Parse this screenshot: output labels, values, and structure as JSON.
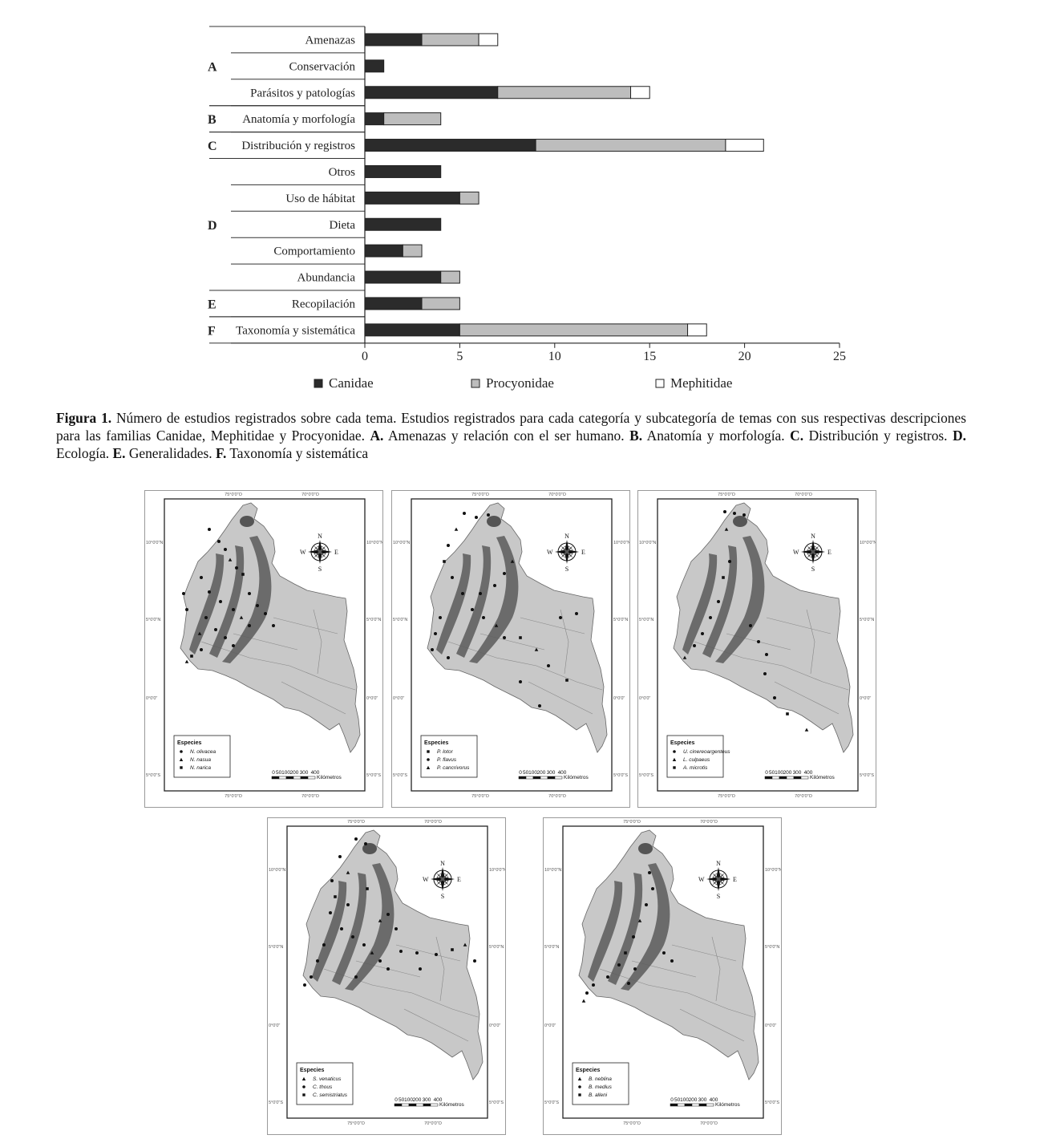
{
  "chart_data": {
    "type": "bar",
    "orientation": "horizontal",
    "stacked": true,
    "categories": [
      "Amenazas",
      "Conservación",
      "Parásitos y patologías",
      "Anatomía y morfología",
      "Distribución y registros",
      "Otros",
      "Uso de hábitat",
      "Dieta",
      "Comportamiento",
      "Abundancia",
      "Recopilación",
      "Taxonomía y sistemática"
    ],
    "groups": [
      {
        "label": "A",
        "categories": [
          "Amenazas",
          "Conservación",
          "Parásitos y patologías"
        ]
      },
      {
        "label": "B",
        "categories": [
          "Anatomía y morfología"
        ]
      },
      {
        "label": "C",
        "categories": [
          "Distribución y registros"
        ]
      },
      {
        "label": "D",
        "categories": [
          "Otros",
          "Uso de hábitat",
          "Dieta",
          "Comportamiento",
          "Abundancia"
        ]
      },
      {
        "label": "E",
        "categories": [
          "Recopilación"
        ]
      },
      {
        "label": "F",
        "categories": [
          "Taxonomía y sistemática"
        ]
      }
    ],
    "series": [
      {
        "name": "Canidae",
        "color": "#2b2b2b",
        "values": [
          3,
          1,
          7,
          1,
          9,
          4,
          5,
          4,
          2,
          4,
          3,
          5
        ]
      },
      {
        "name": "Procyonidae",
        "color": "#bdbdbd",
        "values": [
          3,
          0,
          7,
          3,
          10,
          0,
          1,
          0,
          1,
          1,
          2,
          12
        ]
      },
      {
        "name": "Mephitidae",
        "color": "#ffffff",
        "values": [
          1,
          0,
          1,
          0,
          2,
          0,
          0,
          0,
          0,
          0,
          0,
          1
        ]
      }
    ],
    "xlim": [
      0,
      25
    ],
    "xticks": [
      0,
      5,
      10,
      15,
      20,
      25
    ],
    "legend_position": "bottom",
    "grid": false
  },
  "caption": {
    "label": "Figura 1.",
    "text": " Número de estudios registrados sobre cada tema. Estudios registrados para cada categoría y subcategoría de temas con sus respectivas descripciones para las familias Canidae, Mephitidae y Procyonidae. ",
    "items": [
      {
        "key": "A.",
        "text": " Amenazas y relación con el ser humano. "
      },
      {
        "key": "B.",
        "text": " Anatomía y morfología. "
      },
      {
        "key": "C.",
        "text": " Distribución y registros. "
      },
      {
        "key": "D.",
        "text": " Ecología. "
      },
      {
        "key": "E.",
        "text": " Generalidades. "
      },
      {
        "key": "F.",
        "text": " Taxonomía y sistemática"
      }
    ]
  },
  "maps": {
    "common": {
      "legend_title": "Especies",
      "lon_labels": [
        "75°0'0\"O",
        "70°0'0\"O"
      ],
      "lat_labels": [
        "10°0'0\"N",
        "5°0'0\"N",
        "0°0'0\"",
        "5°0'0\"S"
      ],
      "compass": {
        "n": "N",
        "s": "S",
        "e": "E",
        "w": "W"
      },
      "scale": {
        "ticks": [
          "0",
          "50100",
          "200",
          "300",
          "400"
        ],
        "unit": "Kilómetros"
      }
    },
    "panels": [
      {
        "species": [
          "N. olivacea",
          "N. nasua",
          "N. narica"
        ]
      },
      {
        "species": [
          "P. lotor",
          "P. flavus",
          "P. cancrivorus"
        ]
      },
      {
        "species": [
          "U. cinereoargenteus",
          "L. culpaeus",
          "A. microtis"
        ]
      },
      {
        "species": [
          "S. venaticus",
          "C. thous",
          "C. semistriatus"
        ]
      },
      {
        "species": [
          "B. neblina",
          "B. medius",
          "B. alleni"
        ]
      }
    ]
  }
}
